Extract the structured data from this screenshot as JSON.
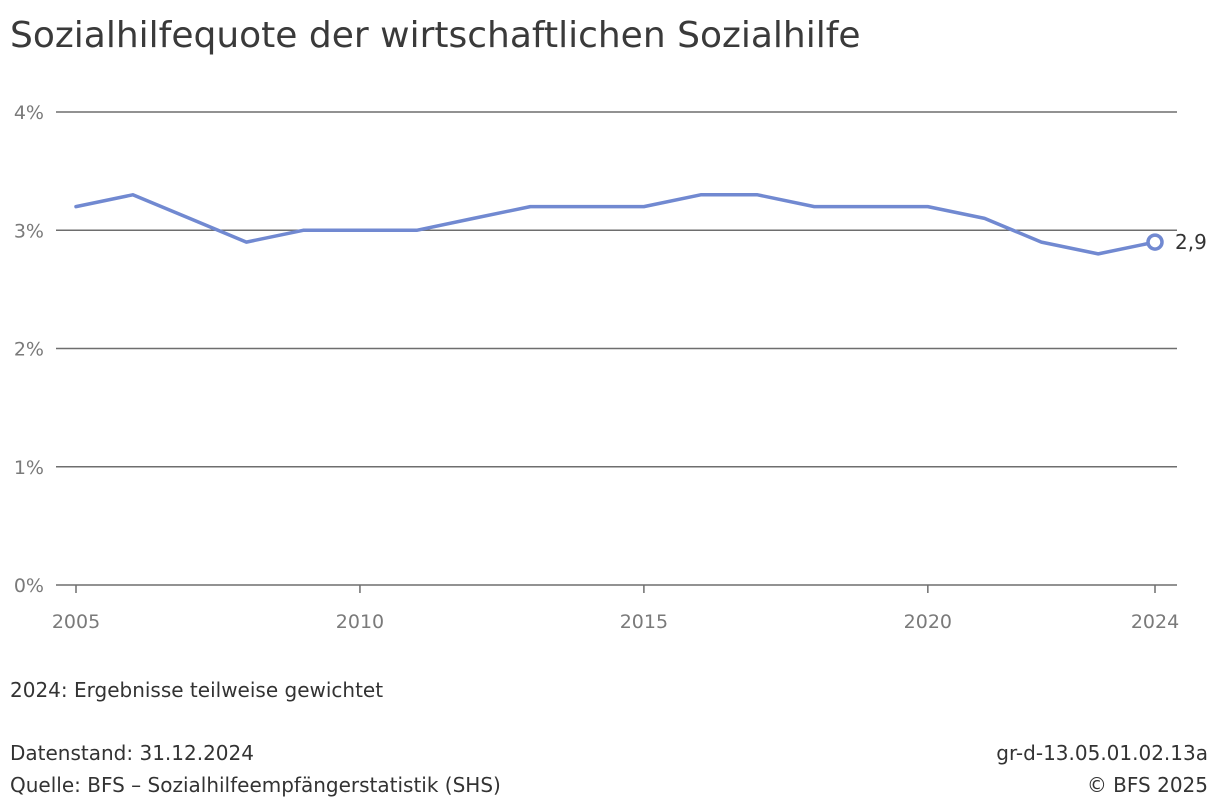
{
  "title": "Sozialhilfequote der wirtschaftlichen Sozialhilfe",
  "chart_data": {
    "type": "line",
    "title": "Sozialhilfequote der wirtschaftlichen Sozialhilfe",
    "xlabel": "",
    "ylabel": "",
    "x": [
      2005,
      2006,
      2007,
      2008,
      2009,
      2010,
      2011,
      2012,
      2013,
      2014,
      2015,
      2016,
      2017,
      2018,
      2019,
      2020,
      2021,
      2022,
      2023,
      2024
    ],
    "series": [
      {
        "values": [
          3.2,
          3.3,
          3.1,
          2.9,
          3.0,
          3.0,
          3.0,
          3.1,
          3.2,
          3.2,
          3.2,
          3.3,
          3.3,
          3.2,
          3.2,
          3.2,
          3.1,
          2.9,
          2.8,
          2.9
        ]
      }
    ],
    "xlim": [
      2005,
      2024
    ],
    "ylim": [
      0,
      4
    ],
    "x_ticks": [
      "2005",
      "2010",
      "2015",
      "2020",
      "2024"
    ],
    "y_ticks": [
      "0%",
      "1%",
      "2%",
      "3%",
      "4%"
    ],
    "end_label": "2,9",
    "grid": true,
    "line_color": "#7189d1",
    "grid_color": "#6e6e6e"
  },
  "note": "2024: Ergebnisse teilweise gewichtet",
  "footer": {
    "data_status": "Datenstand: 31.12.2024",
    "source": "Quelle: BFS – Sozialhilfeempfängerstatistik (SHS)",
    "chart_id": "gr-d-13.05.01.02.13a",
    "copyright": "© BFS 2025"
  }
}
